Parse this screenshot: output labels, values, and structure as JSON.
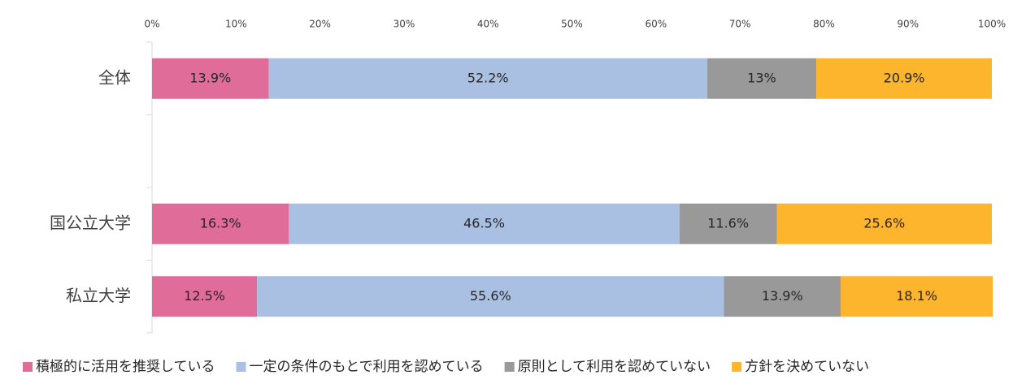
{
  "chart_data": {
    "type": "stacked-bar-horizontal",
    "categories": [
      "全体",
      null,
      "国公立大学",
      "私立大学"
    ],
    "series": [
      {
        "name": "積極的に活用を推奨している",
        "color": "#e06c9a",
        "values": [
          13.9,
          null,
          16.3,
          12.5
        ],
        "value_labels": [
          "13.9%",
          null,
          "16.3%",
          "12.5%"
        ]
      },
      {
        "name": "一定の条件のもとで利用を認めている",
        "color": "#a9c0e2",
        "values": [
          52.2,
          null,
          46.5,
          55.6
        ],
        "value_labels": [
          "52.2%",
          null,
          "46.5%",
          "55.6%"
        ]
      },
      {
        "name": "原則として利用を認めていない",
        "color": "#999999",
        "values": [
          13,
          null,
          11.6,
          13.9
        ],
        "value_labels": [
          "13%",
          null,
          "11.6%",
          "13.9%"
        ]
      },
      {
        "name": "方針を決めていない",
        "color": "#fdb52e",
        "values": [
          20.9,
          null,
          25.6,
          18.1
        ],
        "value_labels": [
          "20.9%",
          null,
          "25.6%",
          "18.1%"
        ]
      }
    ],
    "xlim": [
      0,
      100
    ],
    "xticks": [
      {
        "value": 0,
        "label": "0%"
      },
      {
        "value": 10,
        "label": "10%"
      },
      {
        "value": 20,
        "label": "20%"
      },
      {
        "value": 30,
        "label": "30%"
      },
      {
        "value": 40,
        "label": "40%"
      },
      {
        "value": 50,
        "label": "50%"
      },
      {
        "value": 60,
        "label": "60%"
      },
      {
        "value": 70,
        "label": "70%"
      },
      {
        "value": 80,
        "label": "80%"
      },
      {
        "value": 90,
        "label": "90%"
      },
      {
        "value": 100,
        "label": "100%"
      }
    ],
    "grid": false,
    "legend": "bottom"
  }
}
